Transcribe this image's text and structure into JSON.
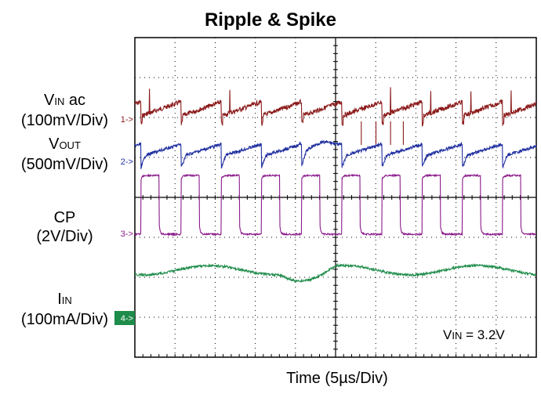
{
  "title": "Ripple & Spike",
  "xlabel": "Time (5µs/Div)",
  "channels": [
    {
      "id": "1",
      "name_main": "V",
      "name_sub": "IN",
      "name_suffix": " ac",
      "scale": "(100mV/Div)",
      "marker": "1->",
      "color": "#8b1a1a"
    },
    {
      "id": "2",
      "name_main": "V",
      "name_sub": "OUT",
      "name_suffix": "",
      "scale": "(500mV/Div)",
      "marker": "2->",
      "color": "#1f2fa0"
    },
    {
      "id": "3",
      "name_main": "CP",
      "name_sub": "",
      "name_suffix": "",
      "scale": "(2V/Div)",
      "marker": "3->",
      "color": "#8b1a8b"
    },
    {
      "id": "4",
      "name_main": "I",
      "name_sub": "IN",
      "name_suffix": "",
      "scale": "(100mA/Div)",
      "marker": "4->",
      "color": "#1e8c4a"
    }
  ],
  "annotation": {
    "main": "V",
    "sub": "IN",
    "rest": " = 3.2V"
  },
  "chart_data": {
    "type": "line",
    "title": "Ripple & Spike",
    "xlabel": "Time (5µs/Div)",
    "x_unit": "div",
    "xlim": [
      0,
      10
    ],
    "ylim": [
      0,
      8
    ],
    "divisions": {
      "x": 10,
      "y": 8
    },
    "grid": true,
    "series": [
      {
        "name": "VIN ac",
        "scale": "100mV/Div",
        "shape": "sawtooth ripple with spikes",
        "period_div": 1.0,
        "color": "#8b1a1a"
      },
      {
        "name": "VOUT",
        "scale": "500mV/Div",
        "shape": "sawtooth ripple",
        "period_div": 1.0,
        "color": "#1f2fa0"
      },
      {
        "name": "CP",
        "scale": "2V/Div",
        "shape": "square wave",
        "period_div": 1.0,
        "duty": 0.55,
        "color": "#8b1a8b"
      },
      {
        "name": "IIN",
        "scale": "100mA/Div",
        "shape": "slow ripple",
        "color": "#1e8c4a"
      }
    ],
    "annotations": [
      "VIN = 3.2V"
    ]
  }
}
